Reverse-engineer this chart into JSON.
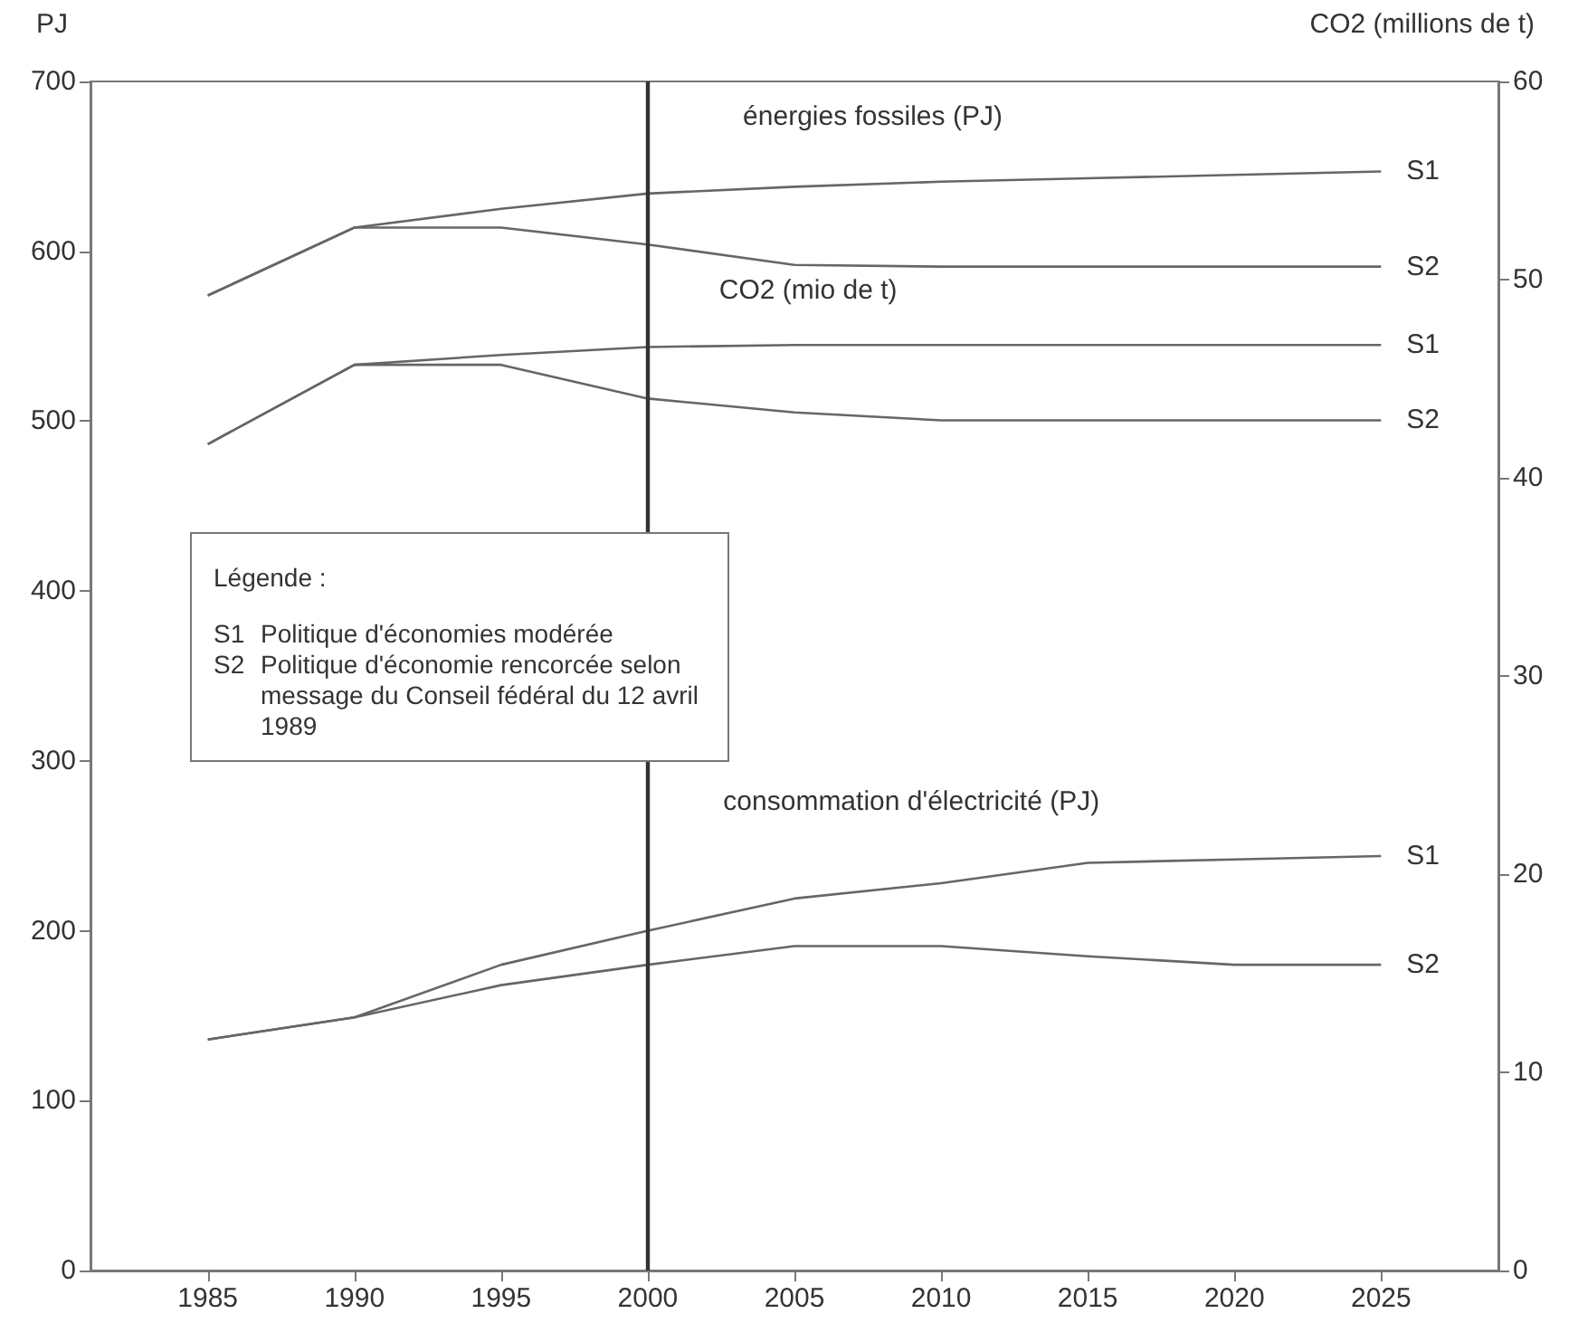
{
  "chart_data": {
    "type": "line",
    "ylabel": "PJ",
    "y2label": "CO2 (millions de t)",
    "x": [
      1985,
      1990,
      1995,
      2000,
      2005,
      2010,
      2015,
      2020,
      2025
    ],
    "xlim": [
      1981,
      2029
    ],
    "xticks": [
      1985,
      1990,
      1995,
      2000,
      2005,
      2010,
      2015,
      2020,
      2025
    ],
    "ylim": [
      0,
      700
    ],
    "yticks": [
      0,
      100,
      200,
      300,
      400,
      500,
      600,
      700
    ],
    "y2lim": [
      0,
      60
    ],
    "y2ticks": [
      0,
      10,
      20,
      30,
      40,
      50,
      60
    ],
    "series": [
      {
        "name": "S1",
        "color": "#666666",
        "values": [
          574,
          614,
          625,
          634,
          638,
          641,
          643,
          645,
          647
        ]
      },
      {
        "name": "S2",
        "color": "#666666",
        "values": [
          574,
          614,
          614,
          604,
          592,
          591,
          591,
          591,
          591
        ]
      },
      {
        "name": "S1",
        "color": "#666666",
        "axis": "y2",
        "values": [
          41.7,
          45.7,
          46.2,
          46.6,
          46.7,
          46.7,
          46.7,
          46.7,
          46.7
        ]
      },
      {
        "name": "S2",
        "color": "#666666",
        "axis": "y2",
        "values": [
          41.7,
          45.7,
          45.7,
          44.0,
          43.3,
          42.9,
          42.9,
          42.9,
          42.9
        ]
      },
      {
        "name": "S1",
        "color": "#666666",
        "values": [
          136,
          149,
          180,
          200,
          219,
          228,
          240,
          242,
          244
        ]
      },
      {
        "name": "S2",
        "color": "#666666",
        "values": [
          136,
          149,
          168,
          180,
          191,
          191,
          185,
          180,
          180
        ]
      }
    ],
    "ref_lines": [
      {
        "axis": "x",
        "value": 2000,
        "color": "#333333"
      }
    ],
    "annotations": [
      "énergies fossiles (PJ)",
      "CO2 (mio de t)",
      "consommation d'électricité (PJ)",
      "Légende :",
      "S1 Politique d'économies modérée",
      "S2 Politique d'économie rencorcée selon message du Conseil fédéral du 12 avril 1989"
    ],
    "grid": false,
    "legend": false,
    "marker": "none",
    "line_style": "solid"
  }
}
